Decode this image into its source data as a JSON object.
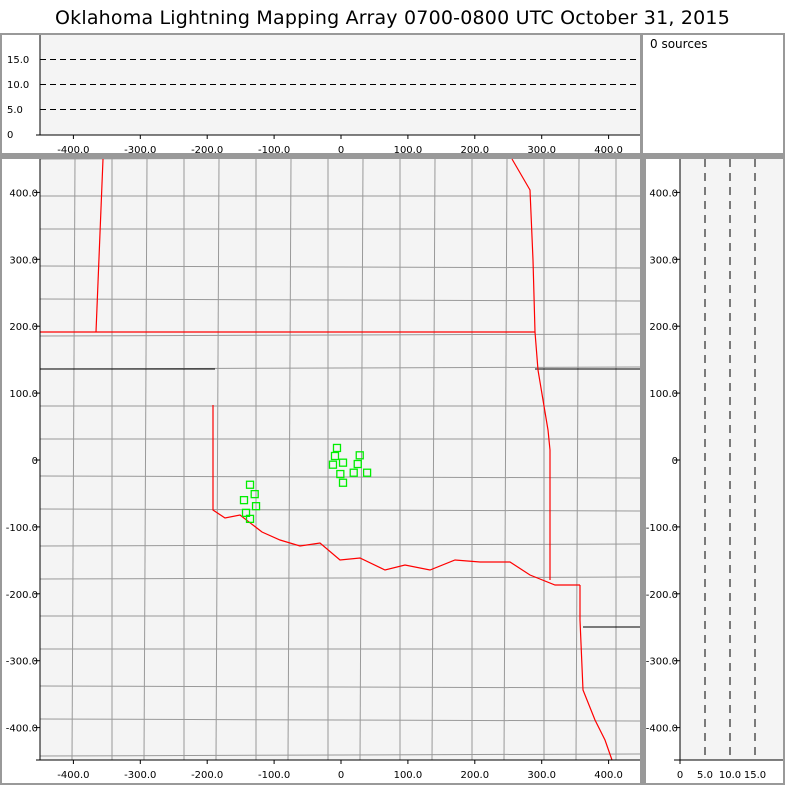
{
  "title": "Oklahoma Lightning Mapping Array   0700-0800 UTC  October 31, 2015",
  "source_count": "0 sources",
  "top_panel": {
    "y_ticks": [
      "0",
      "5.0",
      "10.0",
      "15.0"
    ],
    "x_ticks": [
      "-400.0",
      "-300.0",
      "-200.0",
      "-100.0",
      "0",
      "100.0",
      "200.0",
      "300.0",
      "400.0"
    ]
  },
  "map_panel": {
    "x_ticks": [
      "-400.0",
      "-300.0",
      "-200.0",
      "-100.0",
      "0",
      "100.0",
      "200.0",
      "300.0",
      "400.0"
    ],
    "y_ticks": [
      "400.0",
      "300.0",
      "200.0",
      "100.0",
      "0",
      "-100.0",
      "-200.0",
      "-300.0",
      "-400.0"
    ]
  },
  "side_panel": {
    "x_ticks": [
      "0",
      "5.0",
      "10.0",
      "15.0"
    ]
  },
  "colors": {
    "state_border": "#ff0000",
    "county_border": "#999999",
    "source_marker": "#00ee00",
    "plot_bg": "#f4f4f4"
  },
  "chart_data": {
    "type": "scatter",
    "x_range": [
      -450,
      450
    ],
    "y_range": [
      -450,
      450
    ],
    "altitude_range": [
      0,
      20
    ],
    "altitude_gridlines": [
      5,
      10,
      15
    ],
    "stations": [
      [
        -6,
        18
      ],
      [
        -9,
        6
      ],
      [
        3,
        -4
      ],
      [
        -12,
        -7
      ],
      [
        28,
        7
      ],
      [
        25,
        -6
      ],
      [
        -1,
        -21
      ],
      [
        19,
        -19
      ],
      [
        39,
        -19
      ],
      [
        3,
        -34
      ],
      [
        -136,
        -37
      ],
      [
        -129,
        -51
      ],
      [
        -145,
        -60
      ],
      [
        -127,
        -69
      ],
      [
        -142,
        -79
      ],
      [
        -136,
        -88
      ]
    ]
  }
}
